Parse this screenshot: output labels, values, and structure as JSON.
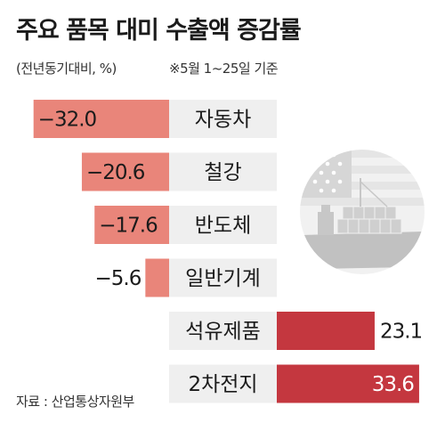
{
  "title": "주요 품목 대미 수출액 증감률",
  "subtitle": "(전년동기대비, %)",
  "note": "※5월 1~25일 기준",
  "source": "자료 : 산업통상자원부",
  "colors": {
    "negative_bar": "#e9857a",
    "positive_bar": "#c4373f",
    "label_box": "#efefef",
    "text": "#1b1b1b"
  },
  "illustration": "cargo-ship-with-us-flag",
  "chart_data": {
    "type": "bar",
    "orientation": "horizontal-diverging",
    "categories": [
      "자동차",
      "철강",
      "반도체",
      "일반기계",
      "석유제품",
      "2차전지"
    ],
    "values": [
      -32.0,
      -20.6,
      -17.6,
      -5.6,
      23.1,
      33.6
    ],
    "value_labels": [
      "−32.0",
      "−20.6",
      "−17.6",
      "−5.6",
      "23.1",
      "33.6"
    ],
    "unit": "%",
    "title": "주요 품목 대미 수출액 증감률"
  }
}
